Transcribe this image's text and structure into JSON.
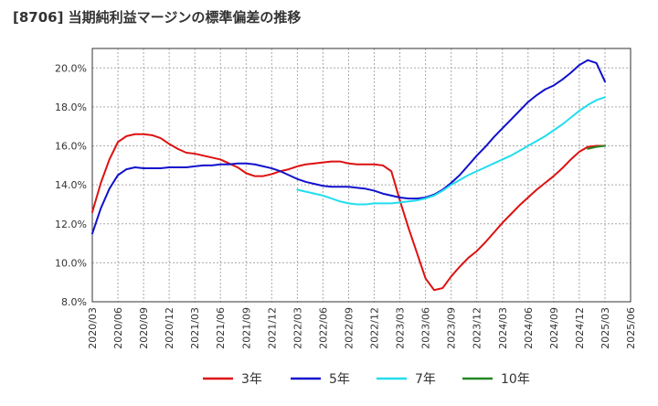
{
  "chart_data": {
    "type": "line",
    "title": "[8706]  当期純利益マージンの標準偏差の推移",
    "xlabel": "",
    "ylabel": "",
    "ylim": [
      8,
      21
    ],
    "yticks": [
      8,
      10,
      12,
      14,
      16,
      18,
      20
    ],
    "ytick_labels": [
      "8.0%",
      "10.0%",
      "12.0%",
      "14.0%",
      "16.0%",
      "18.0%",
      "20.0%"
    ],
    "xlim": [
      "2020/03",
      "2025/06"
    ],
    "xtick_labels": [
      "2020/03",
      "2020/06",
      "2020/09",
      "2020/12",
      "2021/03",
      "2021/06",
      "2021/09",
      "2021/12",
      "2022/03",
      "2022/06",
      "2022/09",
      "2022/12",
      "2023/03",
      "2023/06",
      "2023/09",
      "2023/12",
      "2024/03",
      "2024/06",
      "2024/09",
      "2024/12",
      "2025/03",
      "2025/06"
    ],
    "grid": true,
    "legend_position": "bottom",
    "series": [
      {
        "name": "3年",
        "color": "#dd1111",
        "x": [
          "2020/03",
          "2020/04",
          "2020/05",
          "2020/06",
          "2020/07",
          "2020/08",
          "2020/09",
          "2020/10",
          "2020/11",
          "2020/12",
          "2021/01",
          "2021/02",
          "2021/03",
          "2021/04",
          "2021/05",
          "2021/06",
          "2021/07",
          "2021/08",
          "2021/09",
          "2021/10",
          "2021/11",
          "2021/12",
          "2022/01",
          "2022/02",
          "2022/03",
          "2022/04",
          "2022/05",
          "2022/06",
          "2022/07",
          "2022/08",
          "2022/09",
          "2022/10",
          "2022/11",
          "2022/12",
          "2023/01",
          "2023/02",
          "2023/03",
          "2023/04",
          "2023/05",
          "2023/06",
          "2023/07",
          "2023/08",
          "2023/09",
          "2023/10",
          "2023/11",
          "2023/12",
          "2024/01",
          "2024/02",
          "2024/03",
          "2024/04",
          "2024/05",
          "2024/06",
          "2024/07",
          "2024/08",
          "2024/09",
          "2024/10",
          "2024/11",
          "2024/12",
          "2025/01",
          "2025/02",
          "2025/03"
        ],
        "values": [
          12.6,
          14.1,
          15.3,
          16.2,
          16.5,
          16.6,
          16.6,
          16.55,
          16.4,
          16.1,
          15.85,
          15.65,
          15.6,
          15.5,
          15.4,
          15.3,
          15.1,
          14.9,
          14.6,
          14.45,
          14.45,
          14.55,
          14.7,
          14.8,
          14.95,
          15.05,
          15.1,
          15.15,
          15.2,
          15.2,
          15.1,
          15.05,
          15.05,
          15.05,
          15.0,
          14.7,
          13.2,
          11.8,
          10.5,
          9.2,
          8.6,
          8.7,
          9.3,
          9.8,
          10.25,
          10.6,
          11.05,
          11.55,
          12.05,
          12.5,
          12.95,
          13.35,
          13.75,
          14.1,
          14.45,
          14.85,
          15.3,
          15.7,
          15.95,
          16.0,
          16.0
        ]
      },
      {
        "name": "5年",
        "color": "#1111cc",
        "x": [
          "2020/03",
          "2020/04",
          "2020/05",
          "2020/06",
          "2020/07",
          "2020/08",
          "2020/09",
          "2020/10",
          "2020/11",
          "2020/12",
          "2021/01",
          "2021/02",
          "2021/03",
          "2021/04",
          "2021/05",
          "2021/06",
          "2021/07",
          "2021/08",
          "2021/09",
          "2021/10",
          "2021/11",
          "2021/12",
          "2022/01",
          "2022/02",
          "2022/03",
          "2022/04",
          "2022/05",
          "2022/06",
          "2022/07",
          "2022/08",
          "2022/09",
          "2022/10",
          "2022/11",
          "2022/12",
          "2023/01",
          "2023/02",
          "2023/03",
          "2023/04",
          "2023/05",
          "2023/06",
          "2023/07",
          "2023/08",
          "2023/09",
          "2023/10",
          "2023/11",
          "2023/12",
          "2024/01",
          "2024/02",
          "2024/03",
          "2024/04",
          "2024/05",
          "2024/06",
          "2024/07",
          "2024/08",
          "2024/09",
          "2024/10",
          "2024/11",
          "2024/12",
          "2025/01",
          "2025/02",
          "2025/03"
        ],
        "values": [
          11.5,
          12.8,
          13.8,
          14.5,
          14.8,
          14.9,
          14.85,
          14.85,
          14.85,
          14.9,
          14.9,
          14.9,
          14.95,
          15.0,
          15.0,
          15.05,
          15.05,
          15.1,
          15.1,
          15.05,
          14.95,
          14.85,
          14.7,
          14.5,
          14.3,
          14.15,
          14.05,
          13.95,
          13.9,
          13.9,
          13.9,
          13.85,
          13.8,
          13.7,
          13.55,
          13.45,
          13.35,
          13.3,
          13.3,
          13.35,
          13.5,
          13.75,
          14.1,
          14.5,
          15.0,
          15.5,
          15.95,
          16.45,
          16.9,
          17.35,
          17.8,
          18.25,
          18.6,
          18.9,
          19.1,
          19.4,
          19.75,
          20.15,
          20.4,
          20.25,
          19.3
        ]
      },
      {
        "name": "7年",
        "color": "#22ddee",
        "x": [
          "2022/03",
          "2022/04",
          "2022/05",
          "2022/06",
          "2022/07",
          "2022/08",
          "2022/09",
          "2022/10",
          "2022/11",
          "2022/12",
          "2023/01",
          "2023/02",
          "2023/03",
          "2023/04",
          "2023/05",
          "2023/06",
          "2023/07",
          "2023/08",
          "2023/09",
          "2023/10",
          "2023/11",
          "2023/12",
          "2024/01",
          "2024/02",
          "2024/03",
          "2024/04",
          "2024/05",
          "2024/06",
          "2024/07",
          "2024/08",
          "2024/09",
          "2024/10",
          "2024/11",
          "2024/12",
          "2025/01",
          "2025/02",
          "2025/03"
        ],
        "values": [
          13.75,
          13.65,
          13.55,
          13.45,
          13.3,
          13.15,
          13.05,
          13.0,
          13.0,
          13.05,
          13.05,
          13.05,
          13.1,
          13.15,
          13.2,
          13.3,
          13.45,
          13.7,
          14.0,
          14.25,
          14.5,
          14.7,
          14.9,
          15.1,
          15.3,
          15.5,
          15.75,
          16.0,
          16.25,
          16.5,
          16.8,
          17.1,
          17.45,
          17.8,
          18.1,
          18.35,
          18.5
        ]
      },
      {
        "name": "10年",
        "color": "#228822",
        "x": [
          "2025/01",
          "2025/02",
          "2025/03"
        ],
        "values": [
          15.85,
          15.95,
          16.0
        ]
      }
    ]
  }
}
